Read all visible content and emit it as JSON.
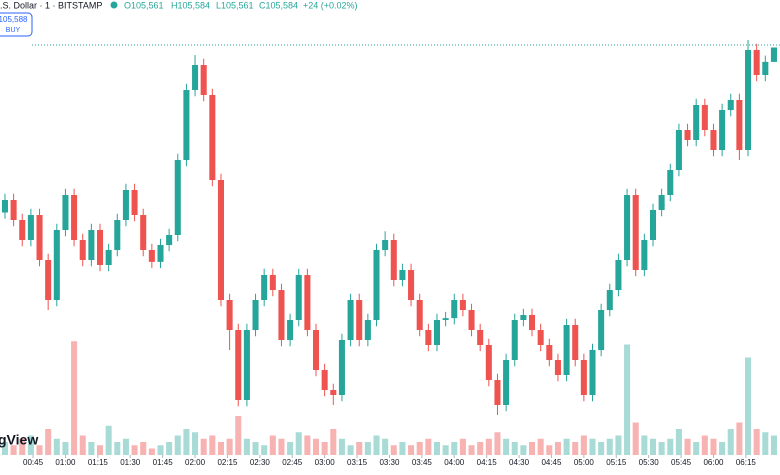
{
  "chart_data": {
    "type": "candlestick",
    "title": ".S. Dollar · 1 · BITSTAMP",
    "ohlc_legend": {
      "open": "O105,561",
      "high": "H105,584",
      "low": "L105,561",
      "close": "C105,584",
      "change": "+24 (+0.02%)"
    },
    "buy_button": {
      "price": "105,588",
      "label": "BUY"
    },
    "watermark": "gView",
    "price_line": 105588,
    "up_color": "#26a69a",
    "down_color": "#ef5350",
    "up_volume_color": "#a8dbd6",
    "down_volume_color": "#f7b3b2",
    "xlim": [
      29.7,
      390.8
    ],
    "ylim": [
      104932,
      105660
    ],
    "volume_ylim": [
      0,
      40
    ],
    "xticks": [
      {
        "value": 45,
        "label": "00:45"
      },
      {
        "value": 60,
        "label": "01:00"
      },
      {
        "value": 75,
        "label": "01:15"
      },
      {
        "value": 90,
        "label": "01:30"
      },
      {
        "value": 105,
        "label": "01:45"
      },
      {
        "value": 120,
        "label": "02:00"
      },
      {
        "value": 135,
        "label": "02:15"
      },
      {
        "value": 150,
        "label": "02:30"
      },
      {
        "value": 165,
        "label": "02:45"
      },
      {
        "value": 180,
        "label": "03:00"
      },
      {
        "value": 195,
        "label": "03:15"
      },
      {
        "value": 210,
        "label": "03:30"
      },
      {
        "value": 225,
        "label": "03:45"
      },
      {
        "value": 240,
        "label": "04:00"
      },
      {
        "value": 255,
        "label": "04:15"
      },
      {
        "value": 270,
        "label": "04:30"
      },
      {
        "value": 285,
        "label": "04:45"
      },
      {
        "value": 300,
        "label": "05:00"
      },
      {
        "value": 315,
        "label": "05:15"
      },
      {
        "value": 330,
        "label": "05:30"
      },
      {
        "value": 345,
        "label": "05:45"
      },
      {
        "value": 360,
        "label": "06:00"
      },
      {
        "value": 375,
        "label": "06:15"
      }
    ],
    "x": [
      32,
      36,
      40,
      44,
      48,
      52,
      56,
      60,
      64,
      68,
      72,
      76,
      80,
      84,
      88,
      92,
      96,
      100,
      104,
      108,
      112,
      116,
      120,
      124,
      128,
      132,
      136,
      140,
      144,
      148,
      152,
      156,
      160,
      164,
      168,
      172,
      176,
      180,
      184,
      188,
      192,
      196,
      200,
      204,
      208,
      212,
      216,
      220,
      224,
      228,
      232,
      236,
      240,
      244,
      248,
      252,
      256,
      260,
      264,
      268,
      272,
      276,
      280,
      284,
      288,
      292,
      296,
      300,
      304,
      308,
      312,
      316,
      320,
      324,
      328,
      332,
      336,
      340,
      344,
      348,
      352,
      356,
      360,
      364,
      368,
      372,
      376,
      380,
      384,
      388
    ],
    "open": [
      105320,
      105340,
      105308,
      105276,
      105316,
      105244,
      105180,
      105292,
      105348,
      105276,
      105244,
      105292,
      105236,
      105260,
      105308,
      105356,
      105316,
      105260,
      105241,
      105268,
      105284,
      105404,
      105516,
      105556,
      105508,
      105372,
      105180,
      105132,
      105020,
      105132,
      105180,
      105220,
      105196,
      105116,
      105148,
      105220,
      105132,
      105068,
      105036,
      105028,
      105116,
      105180,
      105116,
      105148,
      105260,
      105276,
      105212,
      105228,
      105180,
      105132,
      105108,
      105148,
      105151,
      105180,
      105164,
      105132,
      105108,
      105052,
      105012,
      105084,
      105148,
      105156,
      105132,
      105108,
      105084,
      105060,
      105140,
      105084,
      105028,
      105100,
      105164,
      105196,
      105244,
      105348,
      105228,
      105276,
      105324,
      105348,
      105388,
      105452,
      105436,
      105492,
      105452,
      105420,
      105484,
      105500,
      105420,
      105580,
      105540,
      105561
    ],
    "high": [
      105350,
      105350,
      105318,
      105326,
      105326,
      105254,
      105302,
      105358,
      105358,
      105286,
      105302,
      105302,
      105270,
      105318,
      105366,
      105366,
      105326,
      105270,
      105278,
      105294,
      105414,
      105526,
      105572,
      105566,
      105518,
      105382,
      105190,
      105142,
      105142,
      105190,
      105230,
      105230,
      105206,
      105158,
      105230,
      105230,
      105142,
      105078,
      105046,
      105126,
      105190,
      105190,
      105158,
      105270,
      105290,
      105286,
      105238,
      105238,
      105190,
      105142,
      105158,
      105161,
      105190,
      105190,
      105174,
      105142,
      105118,
      105062,
      105094,
      105158,
      105166,
      105166,
      105142,
      105118,
      105094,
      105150,
      105150,
      105094,
      105110,
      105174,
      105206,
      105254,
      105358,
      105358,
      105286,
      105334,
      105358,
      105398,
      105462,
      105462,
      105502,
      105502,
      105462,
      105494,
      105510,
      105510,
      105596,
      105590,
      105571,
      105584
    ],
    "low": [
      105310,
      105298,
      105266,
      105266,
      105234,
      105164,
      105170,
      105282,
      105266,
      105234,
      105234,
      105226,
      105226,
      105250,
      105298,
      105306,
      105250,
      105231,
      105231,
      105258,
      105274,
      105394,
      105506,
      105498,
      105362,
      105170,
      105100,
      105010,
      105010,
      105122,
      105170,
      105186,
      105106,
      105106,
      105138,
      105122,
      105058,
      105026,
      105012,
      105018,
      105106,
      105106,
      105106,
      105138,
      105250,
      105202,
      105202,
      105170,
      105122,
      105098,
      105098,
      105138,
      105141,
      105154,
      105122,
      105098,
      105042,
      104996,
      105002,
      105074,
      105138,
      105122,
      105098,
      105074,
      105050,
      105050,
      105074,
      105018,
      105018,
      105090,
      105154,
      105186,
      105234,
      105218,
      105218,
      105266,
      105314,
      105338,
      105378,
      105426,
      105426,
      105442,
      105410,
      105410,
      105474,
      105404,
      105410,
      105530,
      105530,
      105561
    ],
    "close": [
      105340,
      105308,
      105276,
      105316,
      105244,
      105180,
      105292,
      105348,
      105276,
      105244,
      105292,
      105236,
      105260,
      105308,
      105356,
      105316,
      105260,
      105241,
      105268,
      105284,
      105404,
      105516,
      105556,
      105508,
      105372,
      105180,
      105132,
      105020,
      105132,
      105180,
      105220,
      105196,
      105116,
      105148,
      105220,
      105132,
      105068,
      105036,
      105028,
      105116,
      105180,
      105116,
      105148,
      105260,
      105276,
      105212,
      105228,
      105180,
      105132,
      105108,
      105148,
      105151,
      105180,
      105164,
      105132,
      105108,
      105052,
      105012,
      105084,
      105148,
      105156,
      105132,
      105108,
      105084,
      105060,
      105140,
      105084,
      105028,
      105100,
      105164,
      105196,
      105244,
      105348,
      105228,
      105276,
      105324,
      105348,
      105388,
      105452,
      105436,
      105492,
      105452,
      105420,
      105484,
      105500,
      105420,
      105580,
      105540,
      105561,
      105584
    ],
    "volume": [
      4,
      3,
      5,
      6,
      3,
      8,
      5,
      4,
      35,
      6,
      4,
      3,
      9,
      4,
      5,
      3,
      4,
      2,
      3,
      4,
      6,
      8,
      7,
      5,
      6,
      4,
      5,
      12,
      5,
      4,
      3,
      6,
      5,
      4,
      7,
      6,
      5,
      4,
      8,
      5,
      3,
      4,
      4,
      6,
      5,
      3,
      4,
      3,
      4,
      5,
      4,
      3,
      4,
      5,
      3,
      4,
      5,
      7,
      5,
      4,
      3,
      4,
      5,
      3,
      4,
      5,
      4,
      6,
      5,
      4,
      5,
      6,
      34,
      10,
      6,
      5,
      4,
      5,
      8,
      5,
      4,
      6,
      5,
      4,
      8,
      10,
      30,
      8,
      7,
      6
    ]
  }
}
